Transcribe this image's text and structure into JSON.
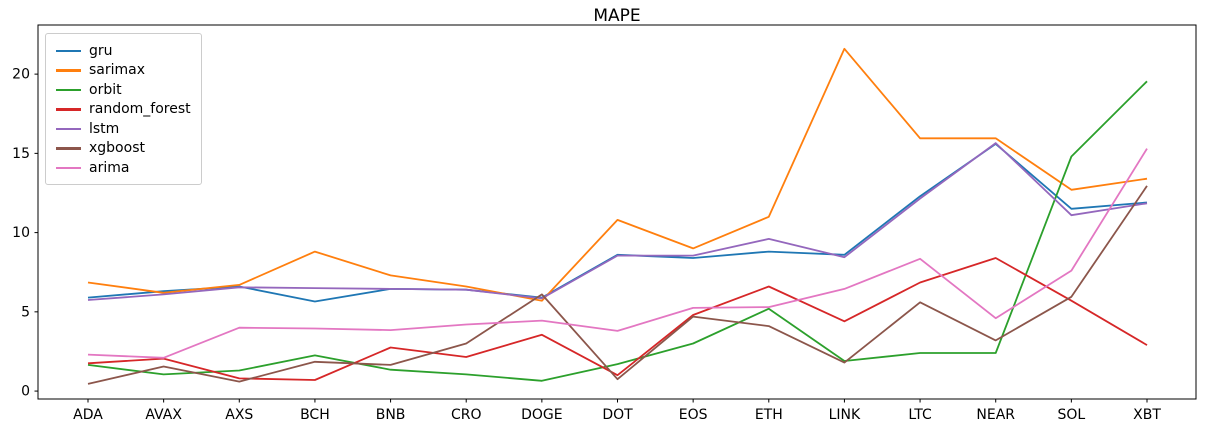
{
  "title": "MAPE",
  "chart_data": {
    "type": "line",
    "title": "MAPE",
    "xlabel": "",
    "ylabel": "",
    "grid": false,
    "legend_position": "upper-left",
    "ylim": [
      -0.5,
      23.1
    ],
    "y_ticks": [
      0,
      5,
      10,
      15,
      20
    ],
    "categories": [
      "ADA",
      "AVAX",
      "AXS",
      "BCH",
      "BNB",
      "CRO",
      "DOGE",
      "DOT",
      "EOS",
      "ETH",
      "LINK",
      "LTC",
      "NEAR",
      "SOL",
      "XBT"
    ],
    "series": [
      {
        "name": "gru",
        "color": "#1f77b4",
        "values": [
          5.9,
          6.3,
          6.6,
          5.65,
          6.45,
          6.4,
          5.9,
          8.6,
          8.4,
          8.8,
          8.6,
          12.3,
          15.6,
          11.5,
          11.9
        ]
      },
      {
        "name": "sarimax",
        "color": "#ff7f0e",
        "values": [
          6.85,
          6.2,
          6.7,
          8.8,
          7.3,
          6.6,
          5.7,
          10.8,
          9.0,
          11.0,
          21.6,
          15.95,
          15.95,
          12.7,
          13.4
        ]
      },
      {
        "name": "orbit",
        "color": "#2ca02c",
        "values": [
          1.65,
          1.05,
          1.3,
          2.25,
          1.35,
          1.05,
          0.65,
          1.7,
          3.0,
          5.2,
          1.9,
          2.4,
          2.4,
          14.8,
          19.55
        ]
      },
      {
        "name": "random_forest",
        "color": "#d62728",
        "values": [
          1.75,
          2.05,
          0.8,
          0.7,
          2.75,
          2.15,
          3.55,
          1.0,
          4.8,
          6.6,
          4.4,
          6.85,
          8.4,
          5.7,
          2.9
        ]
      },
      {
        "name": "lstm",
        "color": "#9467bd",
        "values": [
          5.75,
          6.1,
          6.55,
          6.5,
          6.45,
          6.4,
          5.85,
          8.55,
          8.55,
          9.6,
          8.45,
          12.15,
          15.65,
          11.1,
          11.85
        ]
      },
      {
        "name": "xgboost",
        "color": "#8c564b",
        "values": [
          0.45,
          1.55,
          0.6,
          1.85,
          1.65,
          3.0,
          6.1,
          0.75,
          4.7,
          4.1,
          1.8,
          5.6,
          3.2,
          5.95,
          12.95
        ]
      },
      {
        "name": "arima",
        "color": "#e377c2",
        "values": [
          2.3,
          2.1,
          4.0,
          3.95,
          3.85,
          4.2,
          4.45,
          3.8,
          5.25,
          5.3,
          6.45,
          8.35,
          4.6,
          7.6,
          15.3
        ]
      }
    ]
  }
}
